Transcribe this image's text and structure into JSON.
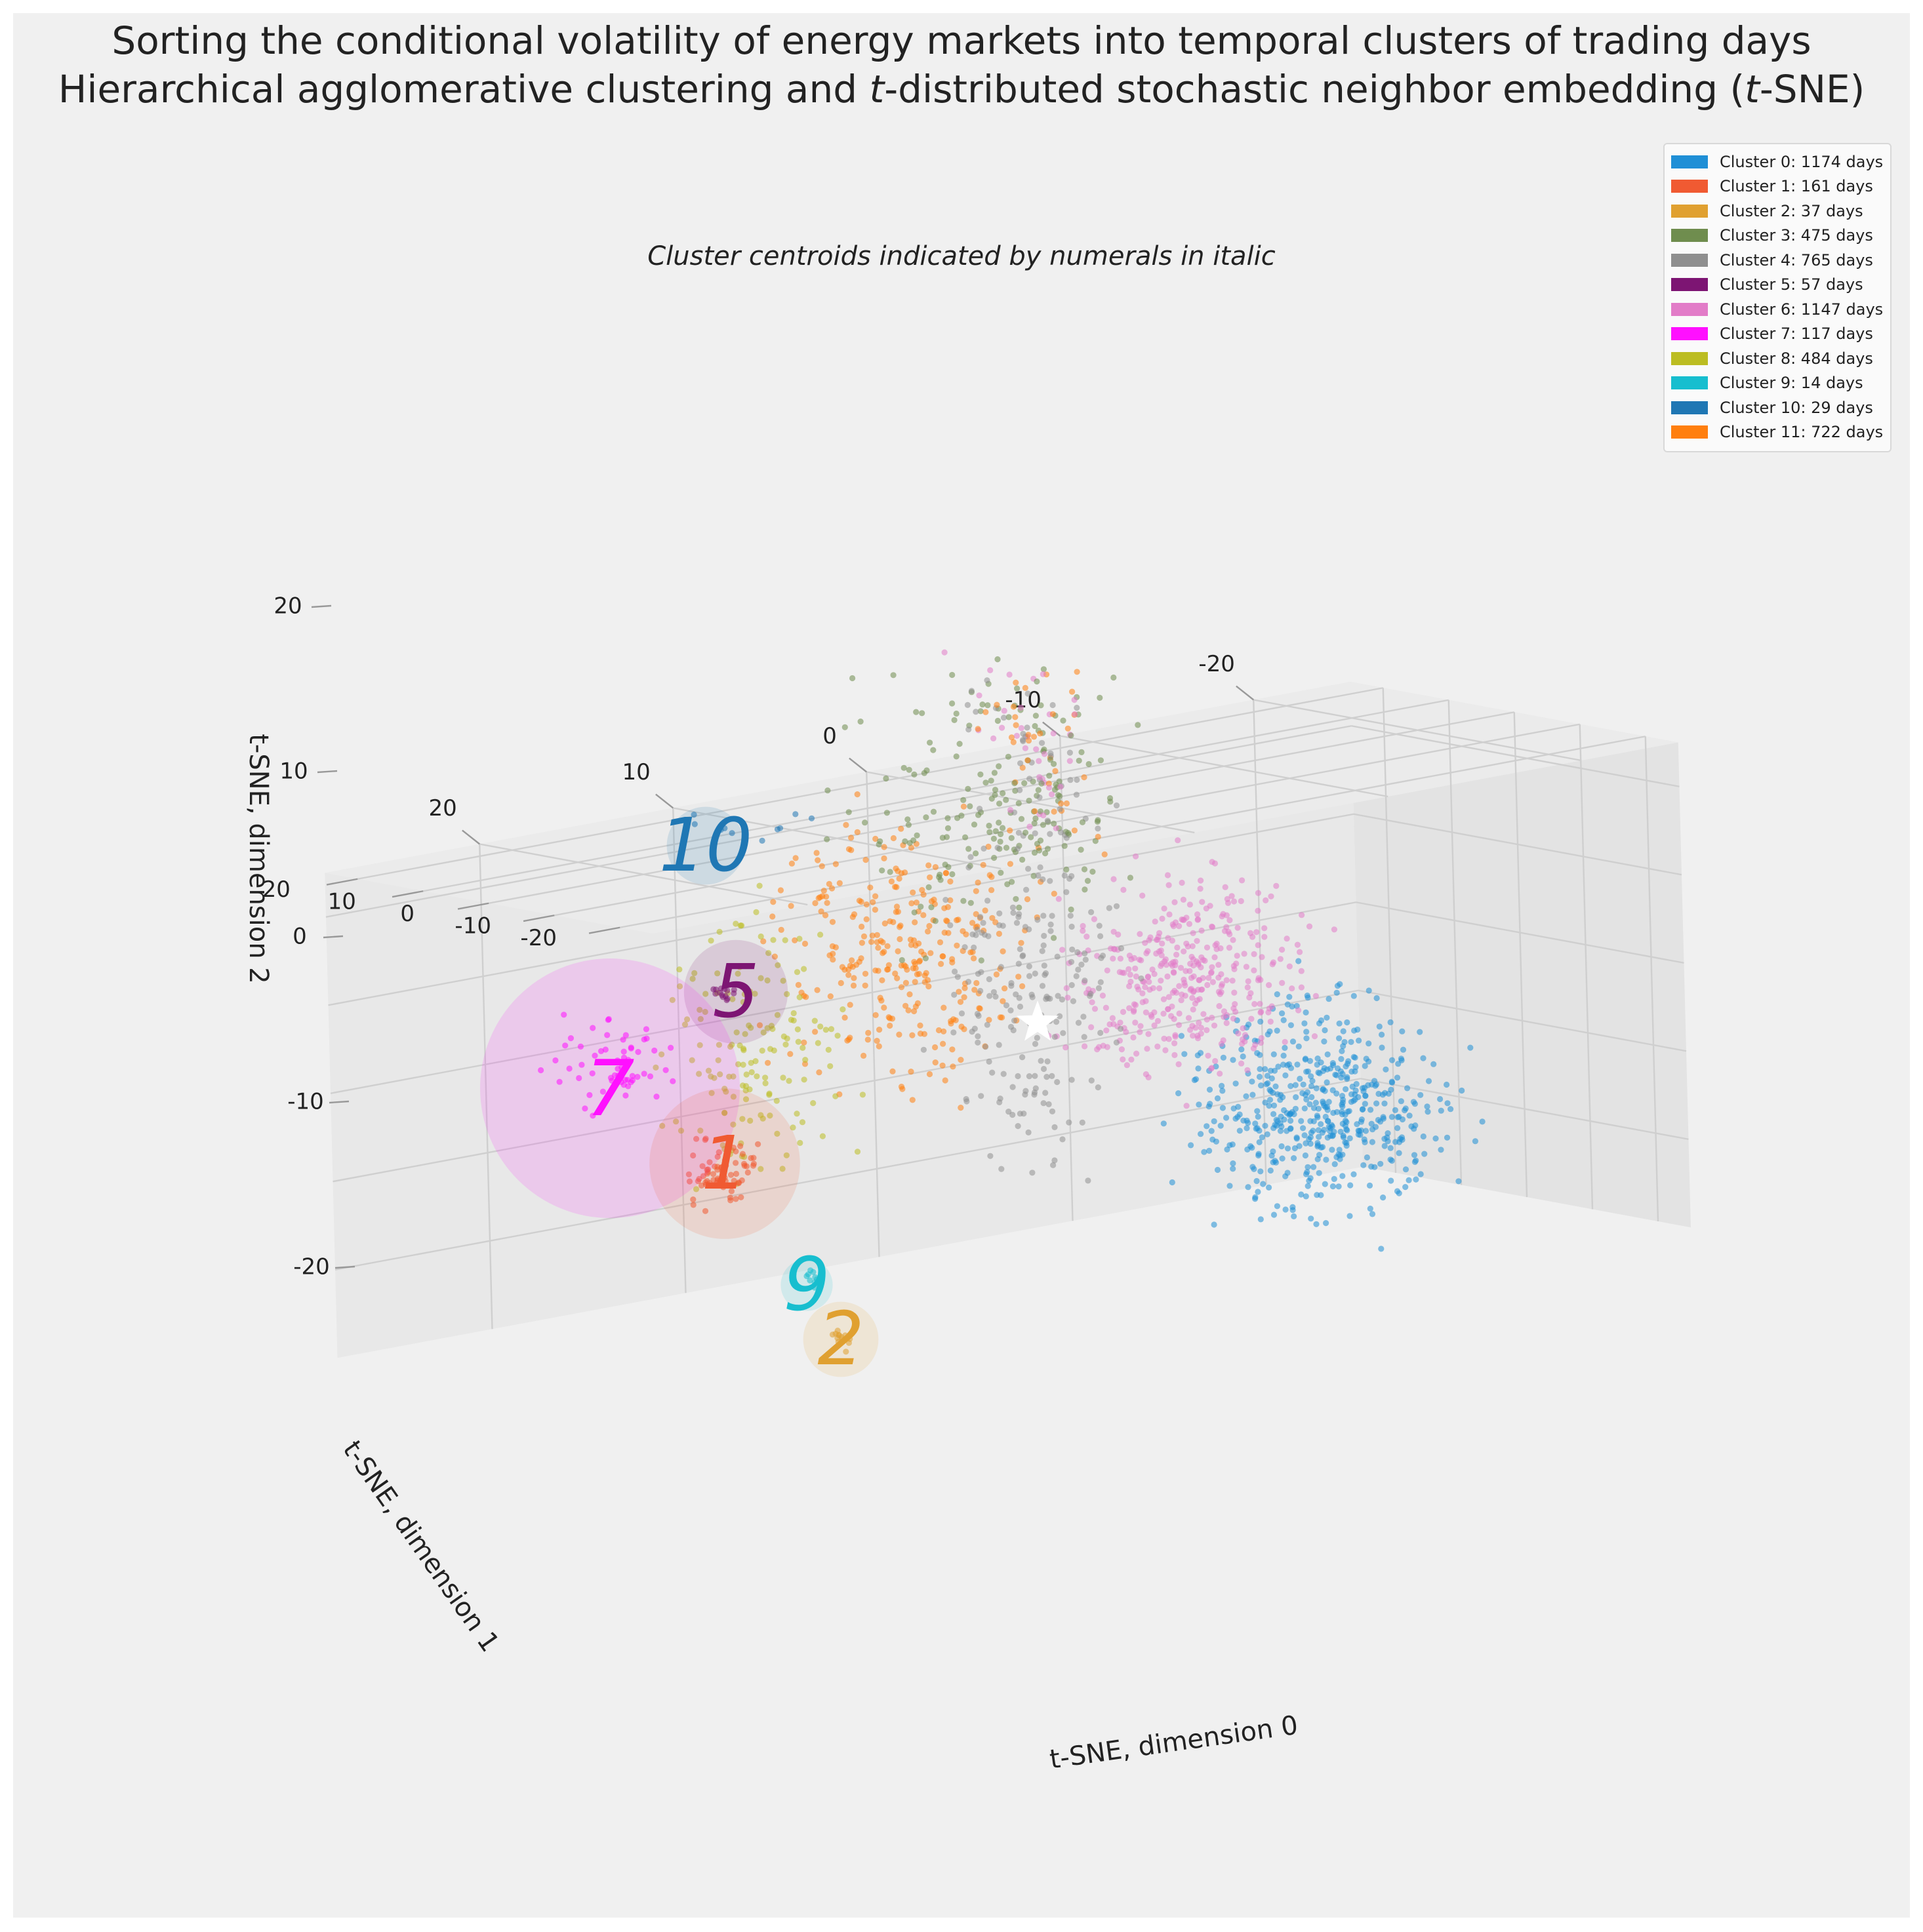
{
  "title_line1": "Sorting the conditional volatility of energy markets into temporal clusters of trading days",
  "title_line2_pre": "Hierarchical agglomerative clustering and ",
  "title_line2_t1": "t",
  "title_line2_mid": "-distributed stochastic neighbor embedding (",
  "title_line2_t2": "t",
  "title_line2_post": "-SNE)",
  "subtitle": "Cluster centroids indicated by numerals in italic",
  "legend": [
    {
      "label": "Cluster 0: 1174 days",
      "color": "#1f8fd6"
    },
    {
      "label": "Cluster 1: 161 days",
      "color": "#f05a32"
    },
    {
      "label": "Cluster 2: 37 days",
      "color": "#e0a030"
    },
    {
      "label": "Cluster 3: 475 days",
      "color": "#6f8d4e"
    },
    {
      "label": "Cluster 4: 765 days",
      "color": "#8f8f8f"
    },
    {
      "label": "Cluster 5: 57 days",
      "color": "#7d1573"
    },
    {
      "label": "Cluster 6: 1147 days",
      "color": "#e27cc8"
    },
    {
      "label": "Cluster 7: 117 days",
      "color": "#ff10ff"
    },
    {
      "label": "Cluster 8: 484 days",
      "color": "#bcbd22"
    },
    {
      "label": "Cluster 9: 14 days",
      "color": "#17becf"
    },
    {
      "label": "Cluster 10: 29 days",
      "color": "#1f77b4"
    },
    {
      "label": "Cluster 11: 722 days",
      "color": "#ff7f0e"
    }
  ],
  "chart_data": {
    "type": "scatter",
    "projection": "3d",
    "title": "Sorting the conditional volatility of energy markets into temporal clusters of trading days / Hierarchical agglomerative clustering and t-distributed stochastic neighbor embedding (t-SNE)",
    "subtitle": "Cluster centroids indicated by numerals in italic",
    "axes": {
      "x": {
        "label": "t-SNE, dimension 0",
        "ticks": [
          20,
          10,
          0,
          -10,
          -20
        ],
        "range": [
          -25,
          28
        ]
      },
      "y": {
        "label": "t-SNE, dimension 1",
        "ticks": [
          -20,
          -10,
          0,
          10,
          20
        ],
        "range": [
          -25,
          25
        ]
      },
      "z": {
        "label": "t-SNE, dimension 2",
        "ticks": [
          20,
          10,
          0,
          -10,
          -20
        ],
        "range": [
          -25,
          30
        ]
      }
    },
    "grid": true,
    "legend_position": "top-right",
    "clusters": [
      {
        "id": 0,
        "days": 1174,
        "color": "#1f8fd6",
        "centroid_label": ""
      },
      {
        "id": 1,
        "days": 161,
        "color": "#f05a32",
        "centroid_label": "1"
      },
      {
        "id": 2,
        "days": 37,
        "color": "#e0a030",
        "centroid_label": "2"
      },
      {
        "id": 3,
        "days": 475,
        "color": "#6f8d4e",
        "centroid_label": ""
      },
      {
        "id": 4,
        "days": 765,
        "color": "#8f8f8f",
        "centroid_label": ""
      },
      {
        "id": 5,
        "days": 57,
        "color": "#7d1573",
        "centroid_label": "5"
      },
      {
        "id": 6,
        "days": 1147,
        "color": "#e27cc8",
        "centroid_label": ""
      },
      {
        "id": 7,
        "days": 117,
        "color": "#ff10ff",
        "centroid_label": "7"
      },
      {
        "id": 8,
        "days": 484,
        "color": "#bcbd22",
        "centroid_label": ""
      },
      {
        "id": 9,
        "days": 14,
        "color": "#17becf",
        "centroid_label": "9"
      },
      {
        "id": 10,
        "days": 29,
        "color": "#1f77b4",
        "centroid_label": "10"
      },
      {
        "id": 11,
        "days": 722,
        "color": "#ff7f0e",
        "centroid_label": ""
      }
    ],
    "centroid_bubbles": [
      {
        "label": "10",
        "cluster": 10,
        "color": "#1f77b4",
        "rel_size": 0.3
      },
      {
        "label": "5",
        "cluster": 5,
        "color": "#7d1573",
        "rel_size": 0.4
      },
      {
        "label": "7",
        "cluster": 7,
        "color": "#ff10ff",
        "rel_size": 1.0
      },
      {
        "label": "1",
        "cluster": 1,
        "color": "#f05a32",
        "rel_size": 0.58
      },
      {
        "label": "9",
        "cluster": 9,
        "color": "#17becf",
        "rel_size": 0.2
      },
      {
        "label": "2",
        "cluster": 2,
        "color": "#e0a030",
        "rel_size": 0.29
      }
    ],
    "global_centroid_marker": "white-star"
  }
}
